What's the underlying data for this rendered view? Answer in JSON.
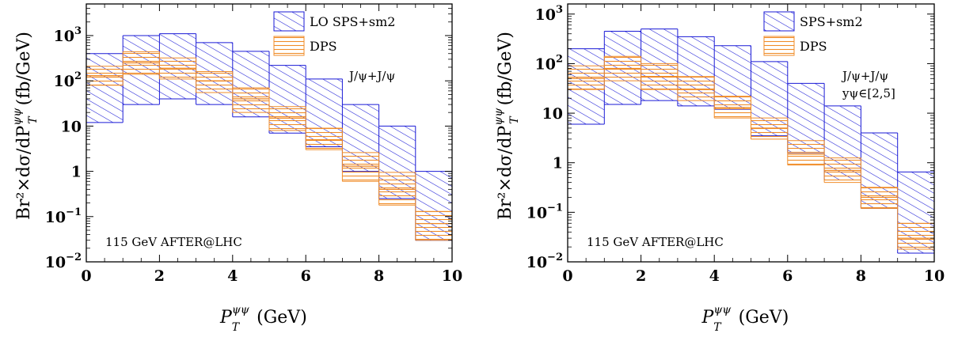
{
  "colors": {
    "sps": "#1a1ad6",
    "dps": "#f08c28",
    "frame": "#000000"
  },
  "chart_data": [
    {
      "type": "area",
      "panel": "left",
      "xlabel_main": "P",
      "xlabel_sup": "ψψ",
      "xlabel_sub": "T",
      "xlabel_unit": "(GeV)",
      "ylabel_main": "Br²×dσ/dP",
      "ylabel_sup": "ψψ",
      "ylabel_sub": "T",
      "ylabel_unit": "(fb/GeV)",
      "xlim": [
        0,
        10
      ],
      "ylim": [
        0.01,
        5000
      ],
      "yscale": "log",
      "x_ticks": [
        "0",
        "2",
        "4",
        "6",
        "8",
        "10"
      ],
      "y_ticks": [
        {
          "value": 0.01,
          "base": "10",
          "exp": "−2"
        },
        {
          "value": 0.1,
          "base": "10",
          "exp": "−1"
        },
        {
          "value": 1,
          "base": "1",
          "exp": ""
        },
        {
          "value": 10,
          "base": "10",
          "exp": ""
        },
        {
          "value": 100,
          "base": "10",
          "exp": "2"
        },
        {
          "value": 1000,
          "base": "10",
          "exp": "3"
        }
      ],
      "annotation_lines": [
        "J/ψ+J/ψ"
      ],
      "footer": "115 GeV AFTER@LHC",
      "legend_position": "top-right",
      "series": [
        {
          "name": "LO SPS+sm2",
          "bins": [
            0,
            1,
            2,
            3,
            4,
            5,
            6,
            7,
            8,
            9,
            10
          ],
          "low": [
            12,
            30,
            40,
            30,
            16,
            7,
            3.5,
            1,
            0.25,
            0.03
          ],
          "high": [
            400,
            1000,
            1100,
            700,
            450,
            220,
            110,
            30,
            10,
            1
          ],
          "central": [
            60,
            180,
            200,
            140,
            70,
            30,
            15,
            4,
            1.2,
            0.15
          ]
        },
        {
          "name": "DPS",
          "bins": [
            0,
            1,
            2,
            3,
            4,
            5,
            6,
            7,
            8,
            9,
            10
          ],
          "low": [
            80,
            140,
            110,
            55,
            20,
            8,
            3,
            0.6,
            0.18,
            0.03
          ],
          "high": [
            210,
            440,
            320,
            160,
            70,
            27,
            9,
            2.6,
            0.95,
            0.13
          ],
          "central": [
            130,
            250,
            190,
            100,
            40,
            15,
            5,
            1.3,
            0.4,
            0.07
          ]
        }
      ]
    },
    {
      "type": "area",
      "panel": "right",
      "xlabel_main": "P",
      "xlabel_sup": "ψψ",
      "xlabel_sub": "T",
      "xlabel_unit": "(GeV)",
      "ylabel_main": "Br²×dσ/dP",
      "ylabel_sup": "ψψ",
      "ylabel_sub": "T",
      "ylabel_unit": "(fb/GeV)",
      "xlim": [
        0,
        10
      ],
      "ylim": [
        0.01,
        1600
      ],
      "yscale": "log",
      "x_ticks": [
        "0",
        "2",
        "4",
        "6",
        "8",
        "10"
      ],
      "y_ticks": [
        {
          "value": 0.01,
          "base": "10",
          "exp": "−2"
        },
        {
          "value": 0.1,
          "base": "10",
          "exp": "−1"
        },
        {
          "value": 1,
          "base": "1",
          "exp": ""
        },
        {
          "value": 10,
          "base": "10",
          "exp": ""
        },
        {
          "value": 100,
          "base": "10",
          "exp": "2"
        },
        {
          "value": 1000,
          "base": "10",
          "exp": "3"
        }
      ],
      "annotation_lines": [
        "J/ψ+J/ψ",
        "yψ∈[2,5]"
      ],
      "footer": "115 GeV AFTER@LHC",
      "legend_position": "top-right",
      "series": [
        {
          "name": "SPS+sm2",
          "bins": [
            0,
            1,
            2,
            3,
            4,
            5,
            6,
            7,
            8,
            9,
            10
          ],
          "low": [
            6,
            15,
            18,
            14,
            12,
            3.5,
            1.6,
            0.45,
            0.12,
            0.015
          ],
          "high": [
            200,
            450,
            500,
            350,
            230,
            110,
            40,
            14,
            4,
            0.65
          ],
          "central": [
            30,
            80,
            90,
            65,
            40,
            15,
            6,
            2,
            0.6,
            0.08
          ]
        },
        {
          "name": "DPS",
          "bins": [
            0,
            1,
            2,
            3,
            4,
            5,
            6,
            7,
            8,
            9,
            10
          ],
          "low": [
            30,
            45,
            30,
            18,
            8,
            3,
            0.9,
            0.4,
            0.12,
            0.018
          ],
          "high": [
            90,
            140,
            100,
            55,
            22,
            8,
            2.8,
            1.25,
            0.32,
            0.06
          ],
          "central": [
            50,
            80,
            55,
            30,
            13,
            5,
            1.5,
            0.7,
            0.2,
            0.03
          ]
        }
      ]
    }
  ]
}
